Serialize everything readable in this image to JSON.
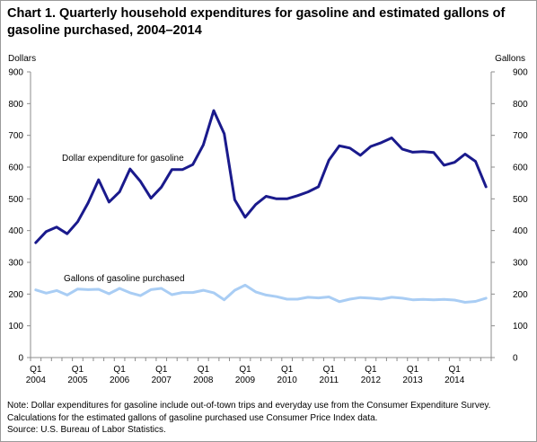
{
  "title": "Chart 1. Quarterly household expenditures for gasoline and estimated gallons of gasoline purchased, 2004–2014",
  "notes": {
    "line1": "Note: Dollar expenditures for gasoline include out-of-town trips and everyday use from the Consumer Expenditure Survey.",
    "line2": "Calculations for the estimated gallons of gasoline purchased use Consumer Price Index data.",
    "source": "Source: U.S. Bureau of Labor Statistics."
  },
  "chart_data": {
    "type": "line",
    "left_axis_label": "Dollars",
    "right_axis_label": "Gallons",
    "ylim": [
      0,
      900
    ],
    "yticks": [
      0,
      100,
      200,
      300,
      400,
      500,
      600,
      700,
      800,
      900
    ],
    "x_tick_labels": [
      {
        "quarter": "Q1",
        "year": "2004",
        "index": 0
      },
      {
        "quarter": "Q1",
        "year": "2005",
        "index": 4
      },
      {
        "quarter": "Q1",
        "year": "2006",
        "index": 8
      },
      {
        "quarter": "Q1",
        "year": "2007",
        "index": 12
      },
      {
        "quarter": "Q1",
        "year": "2008",
        "index": 16
      },
      {
        "quarter": "Q1",
        "year": "2009",
        "index": 20
      },
      {
        "quarter": "Q1",
        "year": "2010",
        "index": 24
      },
      {
        "quarter": "Q1",
        "year": "2011",
        "index": 28
      },
      {
        "quarter": "Q1",
        "year": "2012",
        "index": 32
      },
      {
        "quarter": "Q1",
        "year": "2013",
        "index": 36
      },
      {
        "quarter": "Q1",
        "year": "2014",
        "index": 40
      }
    ],
    "x_start": "2004 Q1",
    "x_end": "2014 Q4",
    "series": [
      {
        "name": "Dollar expenditure for gasoline",
        "color": "#1a1a8c",
        "axis": "left",
        "values": [
          362,
          397,
          411,
          390,
          428,
          487,
          560,
          490,
          522,
          594,
          555,
          502,
          537,
          592,
          592,
          608,
          670,
          778,
          705,
          497,
          442,
          482,
          508,
          500,
          500,
          510,
          522,
          538,
          622,
          667,
          660,
          637,
          665,
          677,
          692,
          657,
          647,
          649,
          646,
          606,
          615,
          641,
          618,
          538
        ]
      },
      {
        "name": "Gallons of gasoline purchased",
        "color": "#a9cdf4",
        "axis": "right",
        "values": [
          213,
          203,
          211,
          197,
          216,
          214,
          215,
          201,
          218,
          204,
          195,
          214,
          218,
          198,
          205,
          205,
          212,
          204,
          182,
          212,
          228,
          207,
          197,
          192,
          184,
          184,
          190,
          188,
          191,
          176,
          184,
          189,
          187,
          184,
          190,
          187,
          182,
          183,
          182,
          183,
          181,
          174,
          177,
          187
        ]
      }
    ],
    "series_labels": {
      "expenditure": "Dollar expenditure for gasoline",
      "gallons": "Gallons of gasoline purchased"
    },
    "grid": false,
    "legend": "inline labels"
  }
}
